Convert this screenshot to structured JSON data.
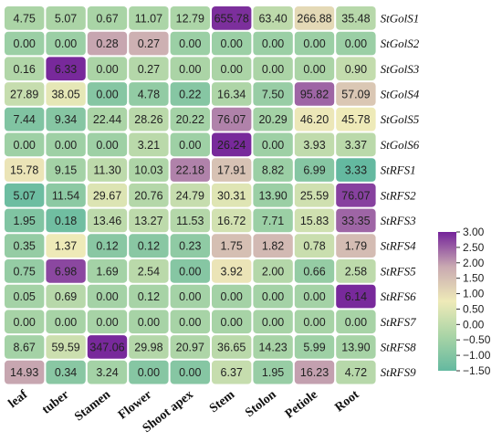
{
  "chart_data": {
    "type": "heatmap",
    "columns": [
      "leaf",
      "tuber",
      "Stamen",
      "Flower",
      "Shoot apex",
      "Stem",
      "Stolon",
      "Petiole",
      "Root"
    ],
    "rows": [
      "StGolS1",
      "StGolS2",
      "StGolS3",
      "StGolS4",
      "StGolS5",
      "StGolS6",
      "StRFS1",
      "StRFS2",
      "StRFS3",
      "StRFS4",
      "StRFS5",
      "StRFS6",
      "StRFS7",
      "StRFS8",
      "StRFS9"
    ],
    "cell_labels": [
      [
        "4.75",
        "5.07",
        "0.67",
        "11.07",
        "12.79",
        "655.78",
        "63.40",
        "266.88",
        "35.48"
      ],
      [
        "0.00",
        "0.00",
        "0.28",
        "0.27",
        "0.00",
        "0.00",
        "0.00",
        "0.00",
        "0.00"
      ],
      [
        "0.16",
        "6.33",
        "0.00",
        "0.27",
        "0.00",
        "0.00",
        "0.00",
        "0.00",
        "0.90"
      ],
      [
        "27.89",
        "38.05",
        "0.00",
        "4.78",
        "0.22",
        "16.34",
        "7.50",
        "95.82",
        "57.09"
      ],
      [
        "7.44",
        "9.34",
        "22.44",
        "28.26",
        "20.22",
        "76.07",
        "20.29",
        "46.20",
        "45.78"
      ],
      [
        "0.00",
        "0.00",
        "0.00",
        "3.21",
        "0.00",
        "26.24",
        "0.00",
        "3.93",
        "3.37"
      ],
      [
        "15.78",
        "9.15",
        "11.30",
        "10.03",
        "22.18",
        "17.91",
        "8.82",
        "6.99",
        "3.33"
      ],
      [
        "5.07",
        "11.54",
        "29.67",
        "20.76",
        "24.79",
        "30.31",
        "13.90",
        "25.59",
        "76.07"
      ],
      [
        "1.95",
        "0.18",
        "13.46",
        "13.27",
        "11.53",
        "16.72",
        "7.71",
        "15.83",
        "33.35"
      ],
      [
        "0.35",
        "1.37",
        "0.12",
        "0.12",
        "0.23",
        "1.75",
        "1.82",
        "0.78",
        "1.79"
      ],
      [
        "0.75",
        "6.98",
        "1.69",
        "2.54",
        "0.00",
        "3.92",
        "2.00",
        "0.66",
        "2.58"
      ],
      [
        "0.05",
        "0.69",
        "0.00",
        "0.12",
        "0.00",
        "0.00",
        "0.00",
        "0.00",
        "6.14"
      ],
      [
        "0.00",
        "0.00",
        "0.00",
        "0.00",
        "0.00",
        "0.00",
        "0.00",
        "0.00",
        "0.00"
      ],
      [
        "8.67",
        "59.59",
        "347.06",
        "29.98",
        "20.97",
        "36.65",
        "14.23",
        "5.99",
        "13.90"
      ],
      [
        "14.93",
        "0.34",
        "3.24",
        "0.00",
        "0.00",
        "6.37",
        "1.95",
        "16.23",
        "4.72"
      ]
    ],
    "z_scores": [
      [
        -0.35,
        -0.35,
        -0.38,
        -0.33,
        -0.32,
        2.9,
        -0.05,
        1.05,
        -0.15
      ],
      [
        -0.6,
        -0.6,
        1.9,
        1.75,
        -0.6,
        -0.6,
        -0.6,
        -0.6,
        -0.6
      ],
      [
        -0.25,
        2.95,
        -0.35,
        -0.2,
        -0.35,
        -0.35,
        -0.35,
        -0.35,
        0.05
      ],
      [
        0.1,
        0.6,
        -0.95,
        -0.75,
        -0.95,
        -0.3,
        -0.65,
        2.45,
        1.35
      ],
      [
        -1.05,
        -0.95,
        -0.35,
        -0.1,
        -0.45,
        2.2,
        -0.45,
        0.8,
        0.75
      ],
      [
        -0.55,
        -0.55,
        -0.55,
        -0.1,
        -0.55,
        2.95,
        -0.55,
        0.0,
        -0.1
      ],
      [
        0.85,
        -0.45,
        -0.05,
        -0.3,
        2.2,
        1.45,
        -0.6,
        -0.95,
        -1.5
      ],
      [
        -1.35,
        -0.85,
        0.45,
        -0.2,
        0.1,
        0.5,
        -0.6,
        0.25,
        2.75
      ],
      [
        -1.05,
        -1.3,
        -0.05,
        -0.05,
        -0.2,
        0.3,
        -0.6,
        0.25,
        2.45
      ],
      [
        -0.7,
        0.75,
        -0.9,
        -0.9,
        -0.8,
        1.5,
        1.6,
        0.15,
        1.55
      ],
      [
        -0.7,
        2.7,
        -0.45,
        -0.1,
        -0.95,
        0.85,
        -0.2,
        -0.7,
        -0.05
      ],
      [
        -0.45,
        -0.15,
        -0.45,
        -0.4,
        -0.45,
        -0.45,
        -0.45,
        -0.45,
        2.95
      ],
      [
        -0.4,
        -0.4,
        -0.4,
        -0.4,
        -0.4,
        -0.4,
        -0.4,
        -0.4,
        -0.4
      ],
      [
        -0.45,
        0.2,
        2.95,
        -0.2,
        -0.3,
        -0.1,
        -0.4,
        -0.55,
        -0.4
      ],
      [
        1.9,
        -0.9,
        -0.45,
        -0.95,
        -0.95,
        0.1,
        -0.65,
        1.95,
        -0.15
      ]
    ],
    "colorbar": {
      "min": -1.5,
      "max": 3.0,
      "ticks": [
        "3.00",
        "2.50",
        "2.00",
        "1.50",
        "1.00",
        "0.50",
        "0.00",
        "−0.50",
        "−1.00",
        "−1.50"
      ],
      "colors": [
        "#64b9a0",
        "#a9d4a6",
        "#eeeab8",
        "#c9a9b1",
        "#74239a"
      ]
    }
  }
}
